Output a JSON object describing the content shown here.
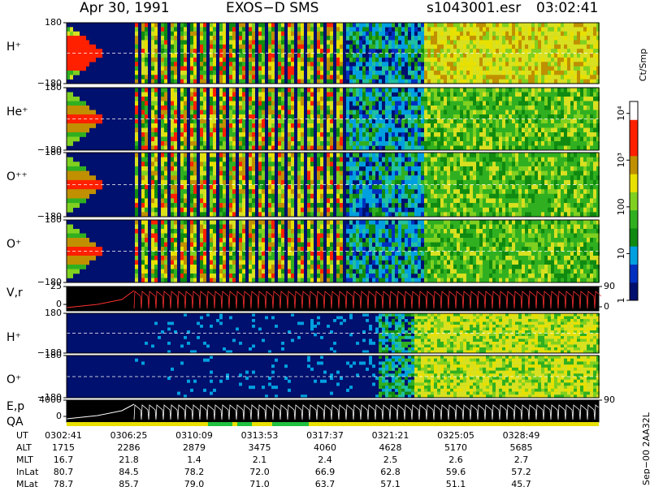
{
  "header": {
    "date": "Apr 30, 1991",
    "instrument": "EXOS−D SMS",
    "file": "s1043001.esr",
    "time": "03:02:41"
  },
  "chart_data": [
    {
      "type": "spectrogram",
      "label": "H⁺",
      "ylim": [
        -180,
        180
      ],
      "yticks": [
        180,
        {
          "value": -180,
          "label": "−180"
        }
      ]
    },
    {
      "type": "spectrogram",
      "label": "He⁺",
      "ylim": [
        -180,
        180
      ],
      "yticks": [
        180,
        {
          "value": -180,
          "label": "−180"
        }
      ]
    },
    {
      "type": "spectrogram",
      "label": "O⁺⁺",
      "ylim": [
        -180,
        180
      ],
      "yticks": [
        180,
        {
          "value": -180,
          "label": "−180"
        }
      ]
    },
    {
      "type": "spectrogram",
      "label": "O⁺",
      "ylim": [
        -180,
        180
      ],
      "yticks": [
        180,
        {
          "value": -180,
          "label": "−180"
        }
      ]
    },
    {
      "type": "trace",
      "label": "V,r",
      "ylim": [
        -9,
        25
      ],
      "yticks": [
        25,
        0
      ],
      "y2lim": [
        -18,
        90
      ],
      "y2ticks": [
        90,
        0
      ]
    },
    {
      "type": "spectrogram",
      "label": "H⁺",
      "ylim": [
        -180,
        180
      ],
      "yticks": [
        180,
        {
          "value": -180,
          "label": "−180"
        }
      ]
    },
    {
      "type": "spectrogram",
      "label": "O⁺",
      "ylim": [
        -180,
        180
      ],
      "yticks": [
        180,
        {
          "value": -180,
          "label": "−180"
        }
      ]
    },
    {
      "type": "trace",
      "label": "E,p",
      "label2": "QA",
      "ylim": [
        -1400,
        4000
      ],
      "yticks": [
        4000,
        0
      ],
      "y2lim": [
        0,
        90
      ],
      "y2ticks": [
        90
      ]
    },
    {
      "type": "colorbar",
      "title": "Ct/Smp",
      "log": true,
      "ylim": [
        1,
        18000
      ],
      "yticks": [
        1,
        10,
        100,
        {
          "value": 1000,
          "label": "10³"
        },
        {
          "value": 10000,
          "label": "10⁴"
        }
      ]
    }
  ],
  "table": {
    "row_labels": [
      "UT",
      "ALT",
      "MLT",
      "InLat",
      "MLat"
    ],
    "rows": [
      [
        "0302:41",
        "0306:25",
        "0310:09",
        "0313:53",
        "0317:37",
        "0321:21",
        "0325:05",
        "0328:49"
      ],
      [
        "1715",
        "2286",
        "2879",
        "3475",
        "4060",
        "4628",
        "5170",
        "5685"
      ],
      [
        "16.7",
        "21.8",
        "1.4",
        "2.1",
        "2.4",
        "2.5",
        "2.6",
        "2.7"
      ],
      [
        "80.7",
        "84.5",
        "78.2",
        "72.0",
        "66.9",
        "62.8",
        "59.6",
        "57.2"
      ],
      [
        "78.7",
        "85.7",
        "79.0",
        "71.0",
        "63.7",
        "57.1",
        "51.1",
        "45.7"
      ]
    ]
  },
  "footer": "Sep−00 2AA32L"
}
